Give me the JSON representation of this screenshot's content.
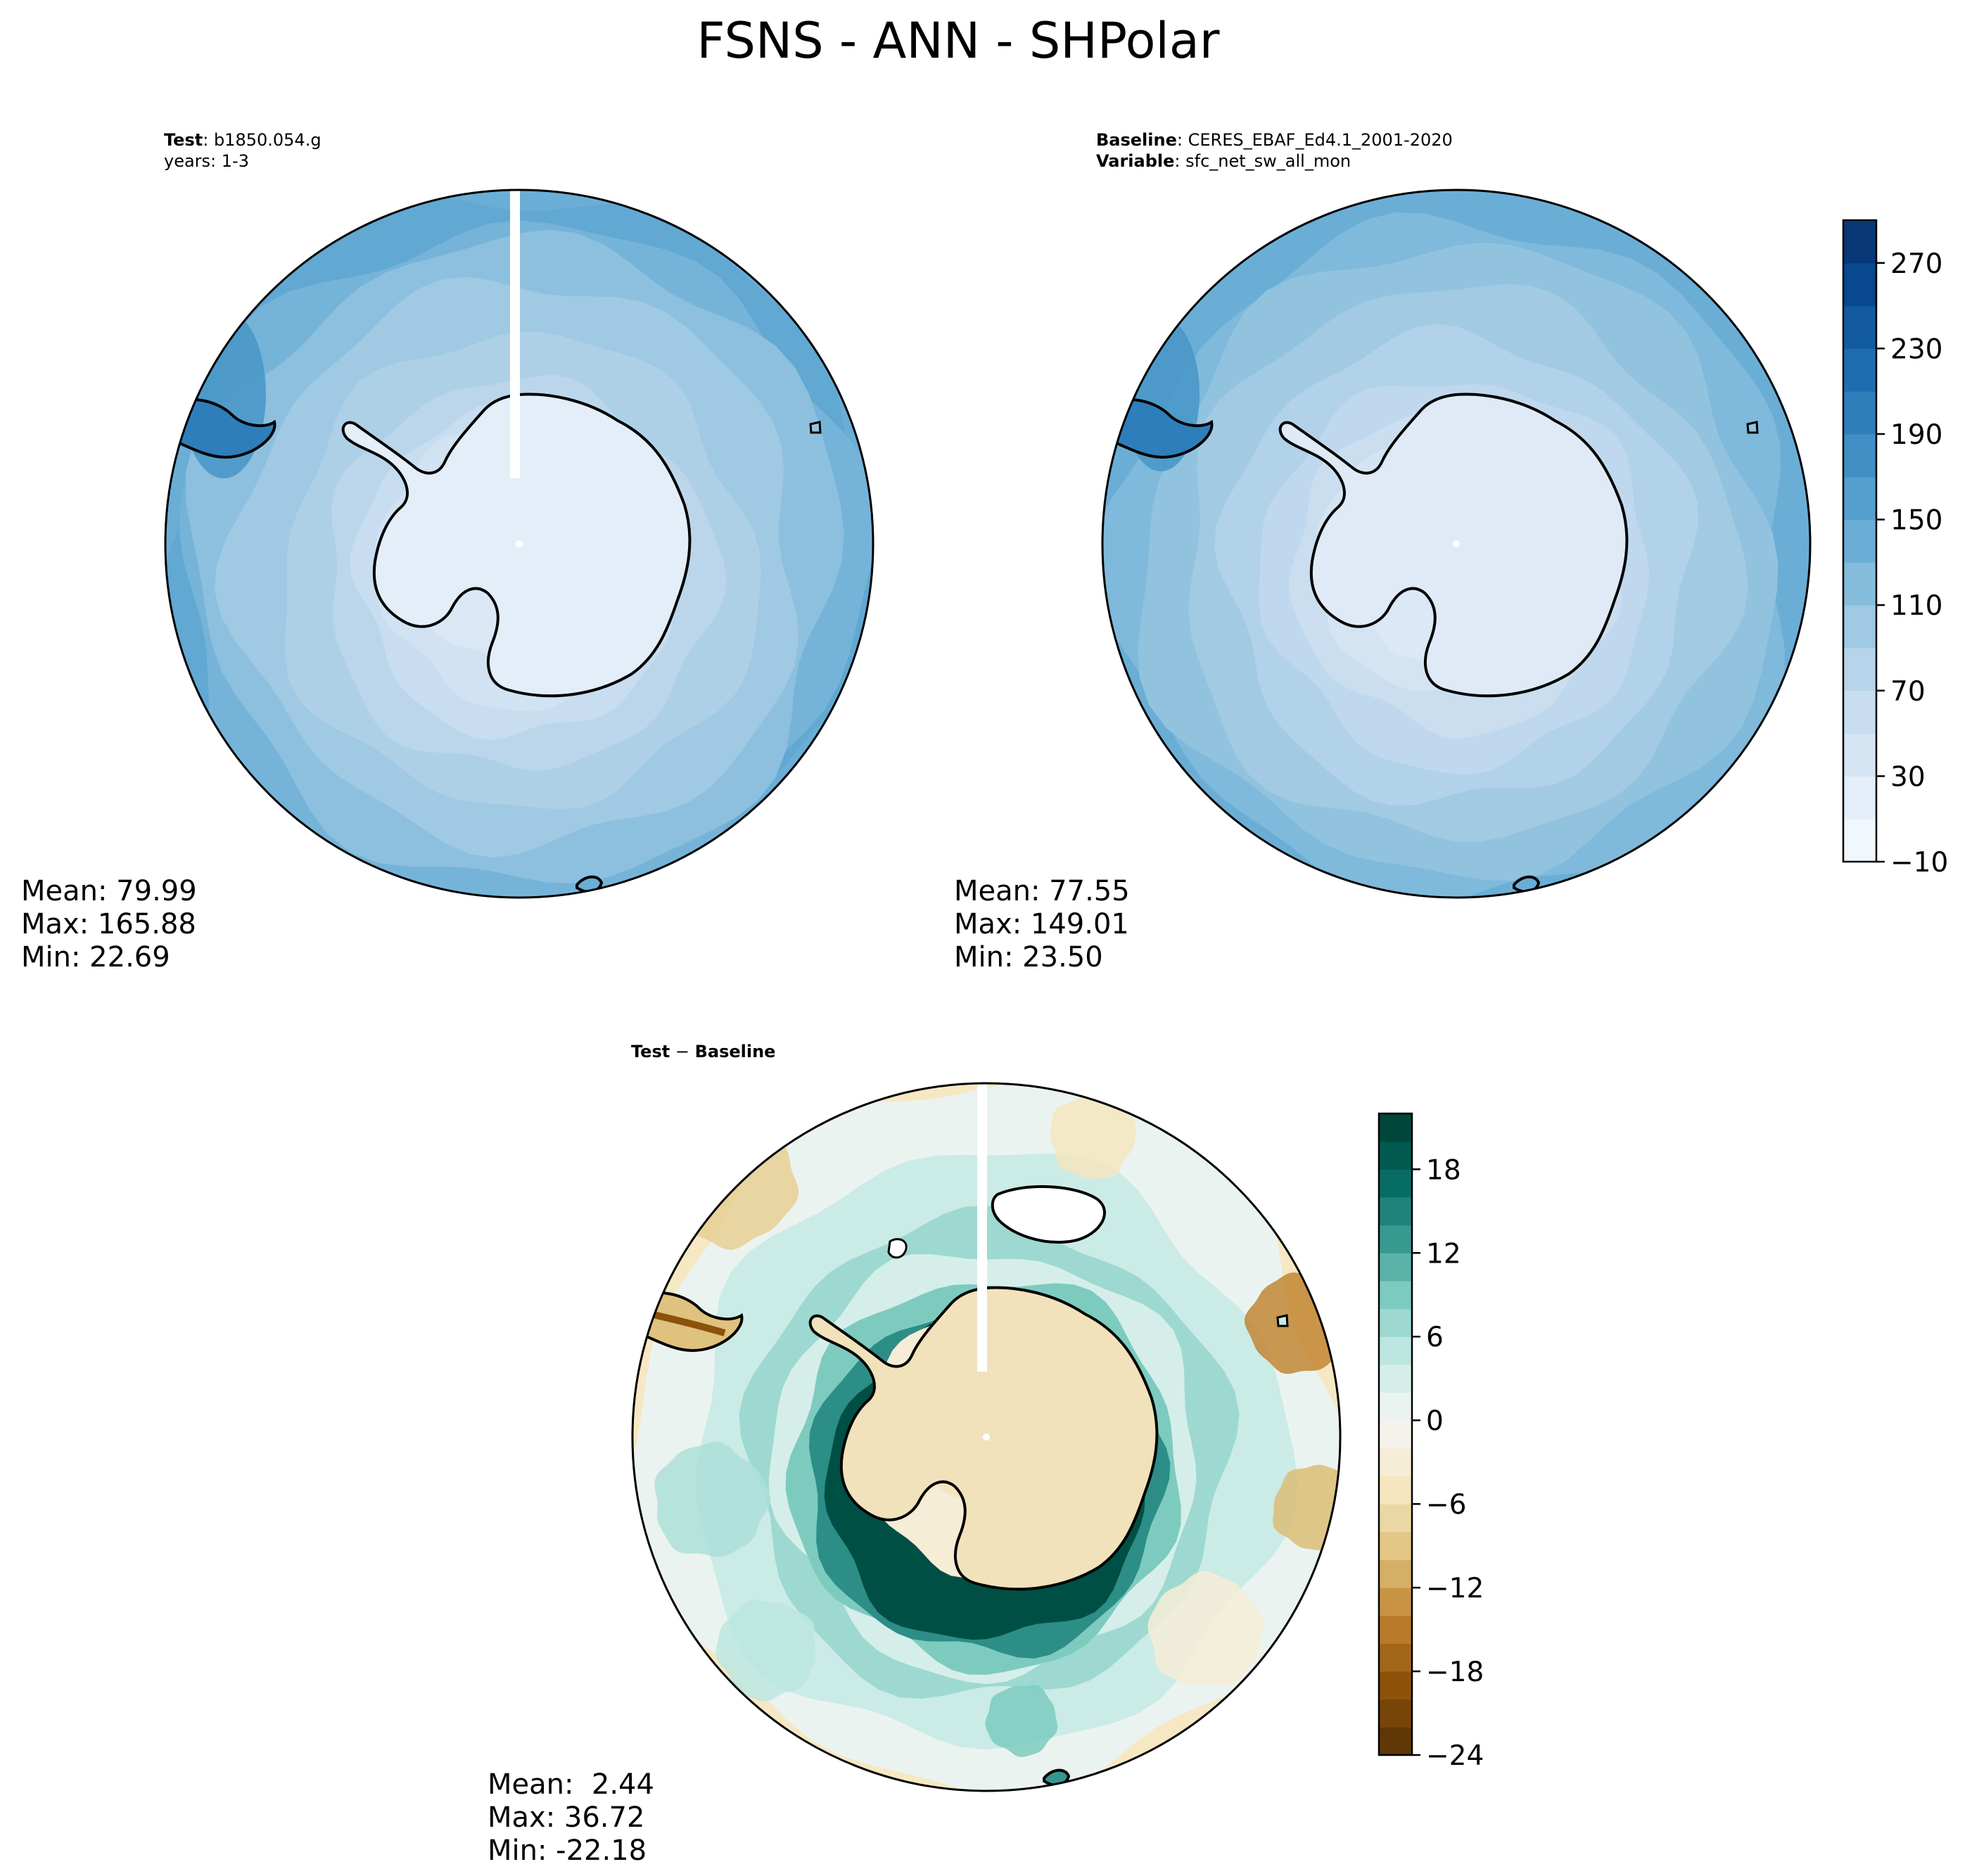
{
  "chart_data": {
    "type": "heatmap",
    "title": "FSNS - ANN - SHPolar",
    "panels": [
      {
        "id": "test",
        "label_bold": "Test",
        "label_value": "b1850.054.g",
        "label_line2": "years: 1-3",
        "stats": {
          "mean": "Mean: 79.99",
          "max": "Max: 165.88",
          "min": "Min: 22.69"
        },
        "rings": [
          {
            "value": 148,
            "r": 1.0,
            "shift": 0.0
          },
          {
            "value": 132,
            "r": 0.97,
            "shift": 0.06
          },
          {
            "value": 115,
            "r": 0.91,
            "shift": 0.05
          },
          {
            "value": 100,
            "r": 0.8,
            "shift": 0.06
          },
          {
            "value": 88,
            "r": 0.67,
            "shift": 0.08
          },
          {
            "value": 75,
            "r": 0.55,
            "shift": 0.09
          },
          {
            "value": 60,
            "r": 0.46,
            "shift": 0.08
          },
          {
            "value": 48,
            "r": 0.4,
            "shift": 0.06
          },
          {
            "value": 34,
            "r": 0.32,
            "shift": 0.03
          }
        ]
      },
      {
        "id": "baseline",
        "label_bold": "Baseline",
        "label_value": "CERES_EBAF_Ed4.1_2001-2020",
        "label2_bold": "Variable",
        "label2_value": "sfc_net_sw_all_mon",
        "stats": {
          "mean": "Mean: 77.55",
          "max": "Max: 149.01",
          "min": "Min: 23.50"
        },
        "rings": [
          {
            "value": 140,
            "r": 1.0,
            "shift": 0.0
          },
          {
            "value": 125,
            "r": 0.96,
            "shift": 0.05
          },
          {
            "value": 112,
            "r": 0.89,
            "shift": 0.05
          },
          {
            "value": 98,
            "r": 0.78,
            "shift": 0.06
          },
          {
            "value": 84,
            "r": 0.66,
            "shift": 0.07
          },
          {
            "value": 70,
            "r": 0.55,
            "shift": 0.08
          },
          {
            "value": 56,
            "r": 0.46,
            "shift": 0.07
          },
          {
            "value": 44,
            "r": 0.39,
            "shift": 0.05
          },
          {
            "value": 33,
            "r": 0.31,
            "shift": 0.03
          }
        ]
      },
      {
        "id": "diff",
        "label_bold": "Test",
        "label_sep": " − ",
        "label_bold2": "Baseline",
        "stats": {
          "mean": "Mean:  2.44",
          "max": "Max: 36.72",
          "min": "Min: -22.18"
        },
        "rings": [
          {
            "value": 1,
            "r": 1.0,
            "shift": 0.0
          },
          {
            "value": 4,
            "r": 0.84,
            "shift": 0.04
          },
          {
            "value": 7,
            "r": 0.68,
            "shift": 0.06
          },
          {
            "value": 3,
            "r": 0.6,
            "shift": 0.07
          },
          {
            "value": 9,
            "r": 0.55,
            "shift": 0.1
          },
          {
            "value": 14,
            "r": 0.5,
            "shift": 0.12
          },
          {
            "value": 20,
            "r": 0.45,
            "shift": 0.13
          },
          {
            "value": -3,
            "r": 0.36,
            "shift": 0.02
          },
          {
            "value": -5,
            "r": 0.22,
            "shift": -0.03
          }
        ],
        "spots": [
          {
            "x": -0.72,
            "y": -0.72,
            "r": 0.18,
            "value": -8
          },
          {
            "x": 0.3,
            "y": -0.85,
            "r": 0.12,
            "value": -5
          },
          {
            "x": 0.88,
            "y": -0.32,
            "r": 0.14,
            "value": -14
          },
          {
            "x": 0.93,
            "y": 0.2,
            "r": 0.12,
            "value": -10
          },
          {
            "x": -0.78,
            "y": 0.18,
            "r": 0.16,
            "value": 6
          },
          {
            "x": -0.62,
            "y": 0.6,
            "r": 0.14,
            "value": 5
          },
          {
            "x": 0.1,
            "y": 0.8,
            "r": 0.1,
            "value": 9
          },
          {
            "x": 0.62,
            "y": 0.55,
            "r": 0.16,
            "value": -3
          }
        ]
      }
    ],
    "colorbars": [
      {
        "id": "cb-main",
        "cmap": "Blues",
        "range": [
          -10,
          290
        ],
        "levels": [
          -10,
          10,
          30,
          50,
          70,
          90,
          110,
          130,
          150,
          170,
          190,
          210,
          230,
          250,
          270,
          290
        ],
        "ticks": [
          -10,
          30,
          70,
          110,
          150,
          190,
          230,
          270
        ],
        "tick_labels": [
          "−10",
          "30",
          "70",
          "110",
          "150",
          "190",
          "230",
          "270"
        ]
      },
      {
        "id": "cb-diff",
        "cmap": "BrBG",
        "range": [
          -24,
          22
        ],
        "levels": [
          -24,
          -22,
          -20,
          -18,
          -16,
          -14,
          -12,
          -10,
          -8,
          -6,
          -4,
          -2,
          0,
          2,
          4,
          6,
          8,
          10,
          12,
          14,
          16,
          18,
          20,
          22
        ],
        "ticks": [
          -24,
          -18,
          -12,
          -6,
          0,
          6,
          12,
          18
        ],
        "tick_labels": [
          "−24",
          "−18",
          "−12",
          "−6",
          "0",
          "6",
          "12",
          "18"
        ]
      }
    ],
    "colors": {
      "blues": [
        "#f7fbff",
        "#e3eef9",
        "#d0e1f2",
        "#b7d4ea",
        "#94c4df",
        "#6aaed6",
        "#4a98c9",
        "#2e7ebc",
        "#1764ab",
        "#08488e",
        "#08306b"
      ],
      "brbg": [
        "#543005",
        "#8c510a",
        "#bf812d",
        "#dfc27d",
        "#f6e8c3",
        "#f5f5f5",
        "#c7eae5",
        "#80cdc1",
        "#35978f",
        "#01665e",
        "#003c30"
      ],
      "land_test": "#e4eef8",
      "land_base": "#dfeaf6"
    }
  }
}
